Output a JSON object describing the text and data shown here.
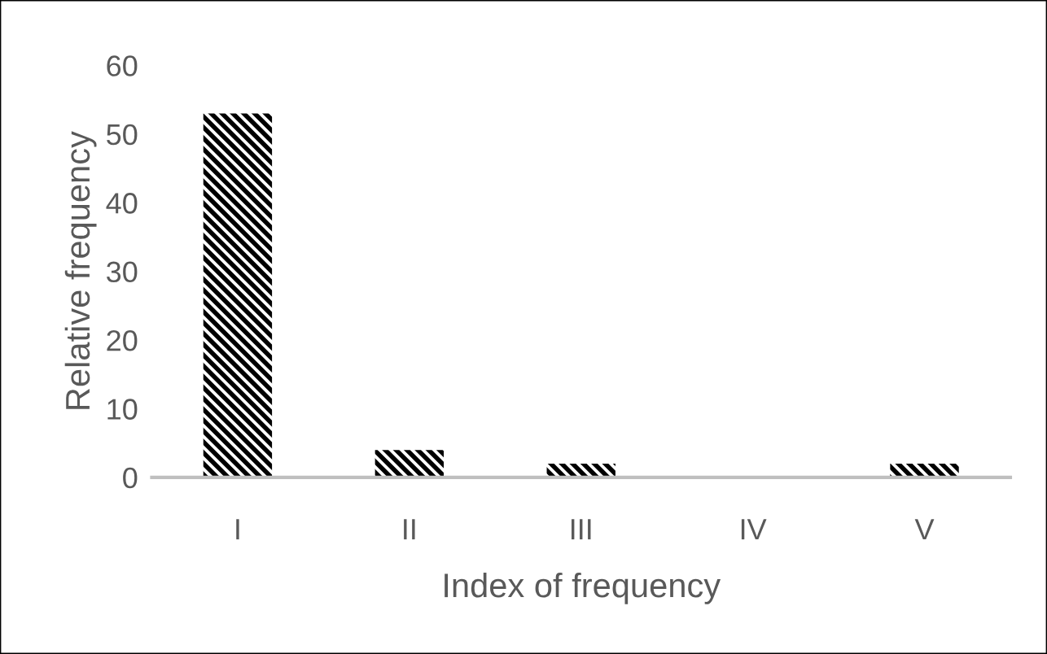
{
  "chart_data": {
    "type": "bar",
    "xlabel": "Index of frequency",
    "ylabel": "Relative frequency",
    "categories": [
      "I",
      "II",
      "III",
      "IV",
      "V"
    ],
    "values": [
      53,
      4,
      2,
      0,
      2
    ],
    "color": "#000000",
    "ylim": [
      0,
      60
    ],
    "yticks": [
      0,
      10,
      20,
      30,
      40,
      50,
      60
    ],
    "grid": false
  }
}
